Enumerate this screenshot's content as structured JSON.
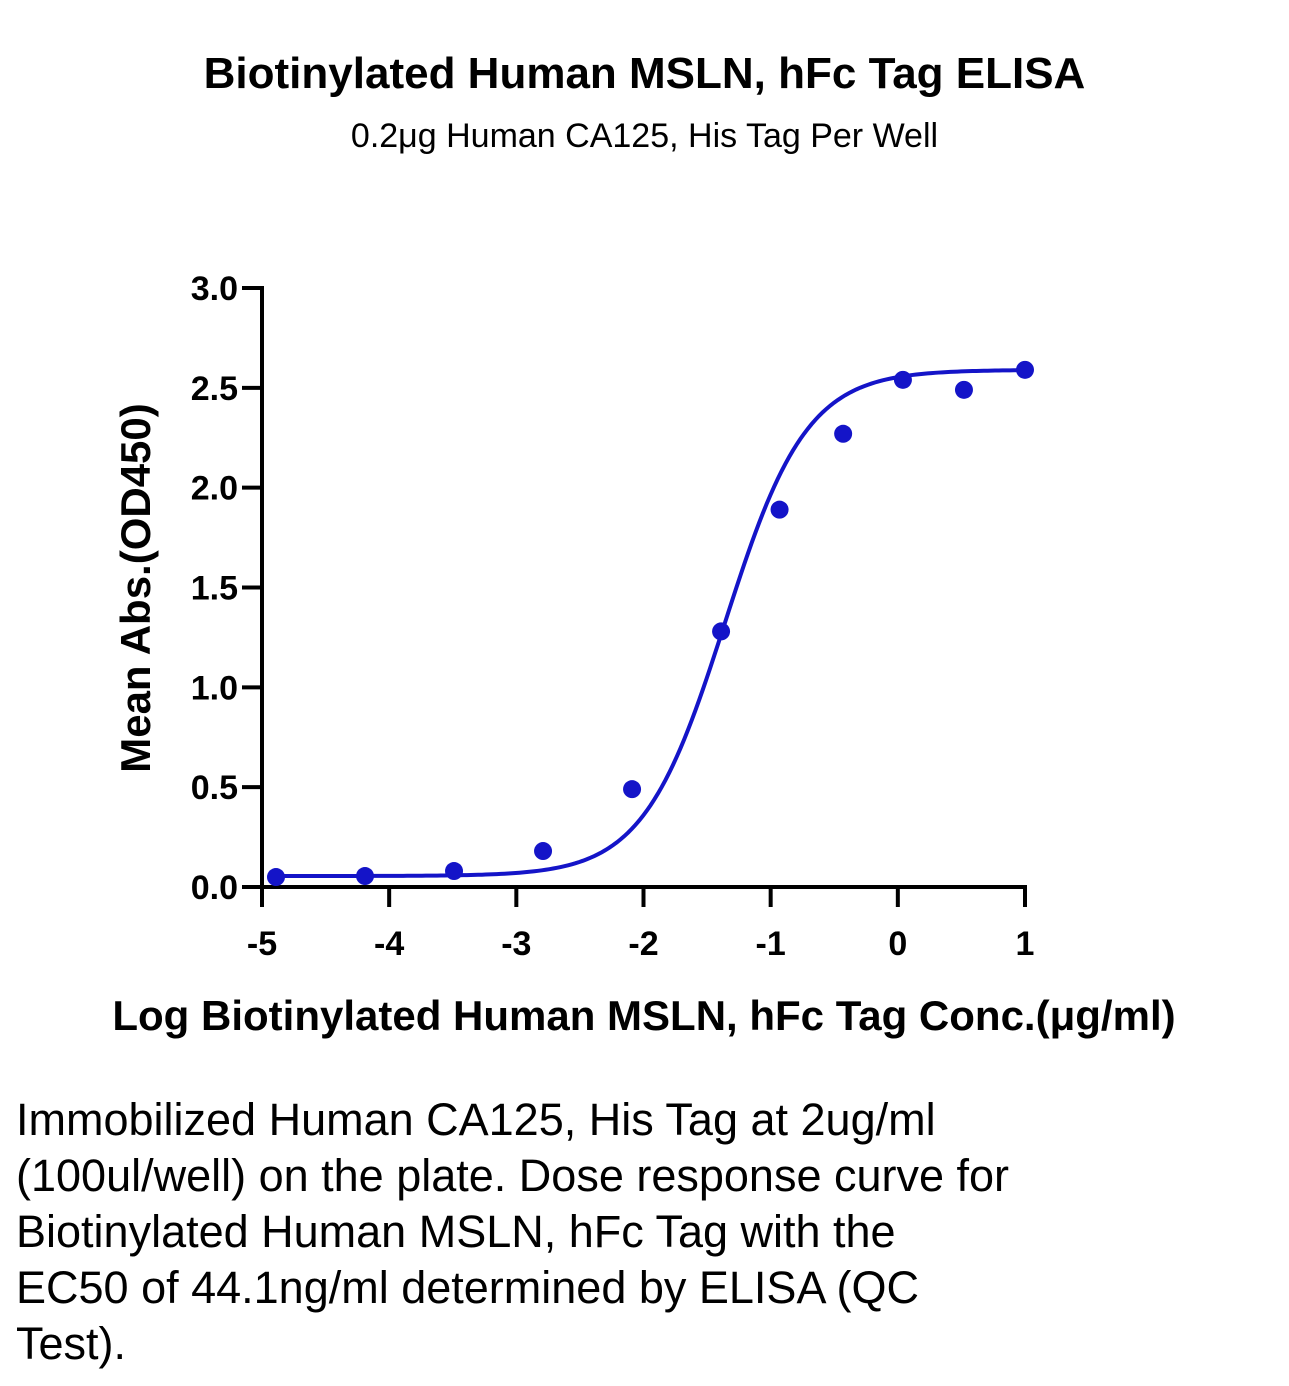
{
  "chart_data": {
    "type": "scatter",
    "title": "Biotinylated Human MSLN, hFc Tag ELISA",
    "subtitle": "0.2μg Human CA125, His Tag Per Well",
    "xlabel": "Log Biotinylated Human MSLN, hFc Tag Conc.(μg/ml)",
    "ylabel": "Mean Abs.(OD450)",
    "xlim": [
      -5,
      1
    ],
    "ylim": [
      0,
      3
    ],
    "x_ticks": [
      -5,
      -4,
      -3,
      -2,
      -1,
      0,
      1
    ],
    "x_tick_labels": [
      "-5",
      "-4",
      "-3",
      "-2",
      "-1",
      "0",
      "1"
    ],
    "y_ticks": [
      0,
      0.5,
      1,
      1.5,
      2,
      2.5,
      3
    ],
    "y_tick_labels": [
      "0.0",
      "0.5",
      "1.0",
      "1.5",
      "2.0",
      "2.5",
      "3.0"
    ],
    "grid": false,
    "series_color": "#1414c8",
    "points": [
      {
        "x": -4.89,
        "y": 0.05
      },
      {
        "x": -4.19,
        "y": 0.055
      },
      {
        "x": -3.49,
        "y": 0.08
      },
      {
        "x": -2.79,
        "y": 0.18
      },
      {
        "x": -2.09,
        "y": 0.49
      },
      {
        "x": -1.39,
        "y": 1.28
      },
      {
        "x": -0.93,
        "y": 1.89
      },
      {
        "x": -0.43,
        "y": 2.27
      },
      {
        "x": 0.04,
        "y": 2.54
      },
      {
        "x": 0.52,
        "y": 2.49
      },
      {
        "x": 1.0,
        "y": 2.59
      }
    ],
    "fit_curve": {
      "model": "4PL",
      "bottom": 0.055,
      "top": 2.59,
      "log_ec50": -1.36,
      "hill": 1.35
    }
  },
  "caption": "Immobilized Human CA125, His Tag at 2ug/ml (100ul/well) on the plate. Dose response curve for Biotinylated Human MSLN, hFc Tag with the EC50 of 44.1ng/ml determined by ELISA (QC Test)."
}
